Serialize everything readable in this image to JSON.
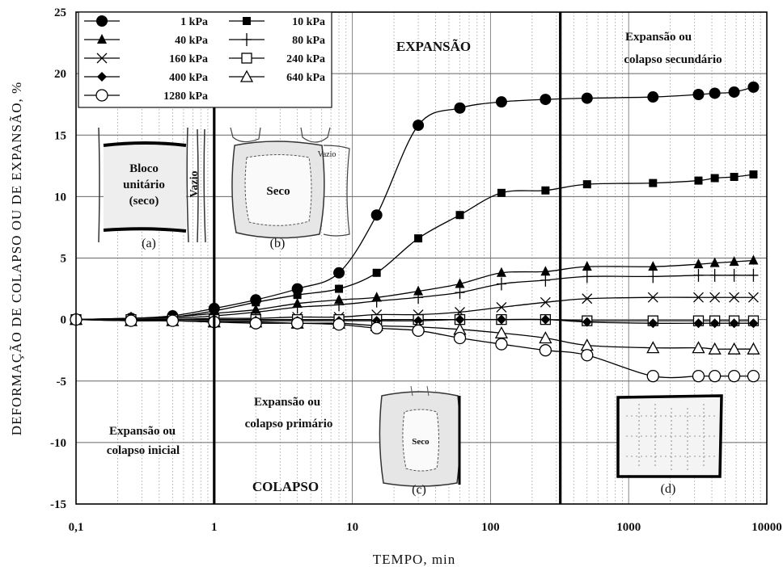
{
  "chart_data": {
    "type": "line",
    "xlabel": "TEMPO, min",
    "ylabel": "DEFORMAÇÃO DE COLAPSO OU DE EXPANSÃO, %",
    "xscale": "log",
    "xlim": [
      0.1,
      10000
    ],
    "ylim": [
      -15,
      25
    ],
    "x_ticks": [
      "0,1",
      "1",
      "10",
      "100",
      "1000",
      "10000"
    ],
    "y_ticks": [
      "25",
      "20",
      "15",
      "10",
      "5",
      "0",
      "-5",
      "-10",
      "-15"
    ],
    "grid": true,
    "legend_position": "top-left",
    "vertical_lines_x": [
      1,
      320
    ],
    "series": [
      {
        "name": "1 kPa",
        "marker": "circle-filled",
        "x": [
          0.1,
          0.25,
          0.5,
          1,
          2,
          4,
          8,
          15,
          30,
          60,
          120,
          250,
          500,
          1500,
          3200,
          4200,
          5800,
          8000
        ],
        "y": [
          0,
          0.1,
          0.3,
          0.9,
          1.6,
          2.5,
          3.8,
          8.5,
          15.8,
          17.2,
          17.7,
          17.9,
          18.0,
          18.1,
          18.3,
          18.4,
          18.5,
          18.9
        ]
      },
      {
        "name": "10 kPa",
        "marker": "square-filled",
        "x": [
          0.1,
          0.25,
          0.5,
          1,
          2,
          4,
          8,
          15,
          30,
          60,
          120,
          250,
          500,
          1500,
          3200,
          4200,
          5800,
          8000
        ],
        "y": [
          0,
          0.1,
          0.2,
          0.7,
          1.4,
          2.0,
          2.5,
          3.8,
          6.6,
          8.5,
          10.3,
          10.5,
          11.0,
          11.1,
          11.3,
          11.5,
          11.6,
          11.8
        ]
      },
      {
        "name": "40 kPa",
        "marker": "triangle-filled",
        "x": [
          0.1,
          0.25,
          0.5,
          1,
          2,
          4,
          8,
          15,
          30,
          60,
          120,
          250,
          500,
          1500,
          3200,
          4200,
          5800,
          8000
        ],
        "y": [
          0,
          0.1,
          0.2,
          0.5,
          0.8,
          1.3,
          1.6,
          1.8,
          2.3,
          2.9,
          3.8,
          3.9,
          4.3,
          4.3,
          4.5,
          4.6,
          4.7,
          4.8
        ]
      },
      {
        "name": "80 kPa",
        "marker": "plus",
        "x": [
          0.1,
          0.25,
          0.5,
          1,
          2,
          4,
          8,
          15,
          30,
          60,
          120,
          250,
          500,
          1500,
          3200,
          4200,
          5800,
          8000
        ],
        "y": [
          0,
          0.1,
          0.1,
          0.3,
          0.6,
          1.0,
          1.2,
          1.5,
          1.8,
          2.2,
          2.9,
          3.2,
          3.5,
          3.5,
          3.6,
          3.6,
          3.6,
          3.6
        ]
      },
      {
        "name": "160 kPa",
        "marker": "x",
        "x": [
          0.1,
          0.25,
          0.5,
          1,
          2,
          4,
          8,
          15,
          30,
          60,
          120,
          250,
          500,
          1500,
          3200,
          4200,
          5800,
          8000
        ],
        "y": [
          0,
          0,
          0,
          0.1,
          0.1,
          0.2,
          0.2,
          0.4,
          0.4,
          0.6,
          1.0,
          1.4,
          1.7,
          1.8,
          1.8,
          1.8,
          1.8,
          1.8
        ]
      },
      {
        "name": "240 kPa",
        "marker": "square-open",
        "x": [
          0.1,
          0.25,
          0.5,
          1,
          2,
          4,
          8,
          15,
          30,
          60,
          120,
          250,
          500,
          1500,
          3200,
          4200,
          5800,
          8000
        ],
        "y": [
          0,
          0,
          0,
          0,
          0,
          0,
          0,
          0,
          0,
          0,
          0,
          0,
          -0.1,
          -0.1,
          -0.1,
          -0.1,
          -0.1,
          -0.1
        ]
      },
      {
        "name": "400 kPa",
        "marker": "diamond-filled",
        "x": [
          0.1,
          0.25,
          0.5,
          1,
          2,
          4,
          8,
          15,
          30,
          60,
          120,
          250,
          500,
          1500,
          3200,
          4200,
          5800,
          8000
        ],
        "y": [
          0,
          0,
          -0.1,
          -0.1,
          -0.1,
          -0.1,
          -0.1,
          -0.1,
          -0.1,
          0,
          0,
          0,
          -0.2,
          -0.3,
          -0.3,
          -0.3,
          -0.3,
          -0.3
        ]
      },
      {
        "name": "640 kPa",
        "marker": "triangle-open",
        "x": [
          0.1,
          0.25,
          0.5,
          1,
          2,
          4,
          8,
          15,
          30,
          60,
          120,
          250,
          500,
          1500,
          3200,
          4200,
          5800,
          8000
        ],
        "y": [
          0,
          -0.1,
          -0.1,
          -0.2,
          -0.2,
          -0.3,
          -0.3,
          -0.5,
          -0.6,
          -0.8,
          -1.1,
          -1.5,
          -2.1,
          -2.3,
          -2.3,
          -2.4,
          -2.4,
          -2.4
        ]
      },
      {
        "name": "1280 kPa",
        "marker": "circle-open",
        "x": [
          0.1,
          0.25,
          0.5,
          1,
          2,
          4,
          8,
          15,
          30,
          60,
          120,
          250,
          500,
          1500,
          3200,
          4200,
          5800,
          8000
        ],
        "y": [
          0,
          -0.1,
          -0.1,
          -0.2,
          -0.3,
          -0.3,
          -0.4,
          -0.7,
          -0.9,
          -1.5,
          -2.0,
          -2.5,
          -2.9,
          -4.6,
          -4.6,
          -4.6,
          -4.6,
          -4.6
        ]
      }
    ],
    "annotations": {
      "expansao": "EXPANSÃO",
      "colapso": "COLAPSO",
      "secundario": [
        "Expansão ou",
        "colapso secundário"
      ],
      "primario": [
        "Expansão ou",
        "colapso primário"
      ],
      "inicial": [
        "Expansão ou",
        "colapso inicial"
      ]
    },
    "insets": {
      "a": {
        "label": "(a)",
        "text": [
          "Bloco",
          "unitário",
          "(seco)"
        ],
        "side_text": "Vazio"
      },
      "b": {
        "label": "(b)",
        "text": "Seco",
        "side_text": "Vazio"
      },
      "c": {
        "label": "(c)",
        "text": "Seco"
      },
      "d": {
        "label": "(d)"
      }
    }
  }
}
